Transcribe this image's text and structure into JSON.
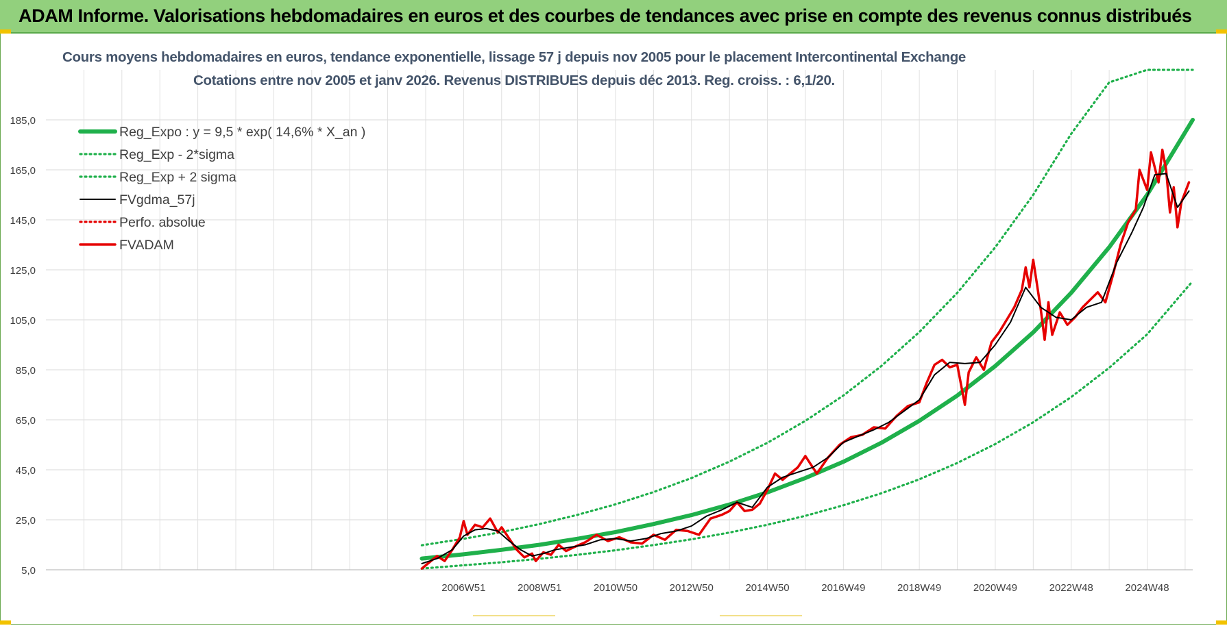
{
  "header": {
    "title": "ADAM Informe. Valorisations hebdomadaires en euros et des courbes de tendances avec prise en compte des revenus connus distribués"
  },
  "colors": {
    "banner": "#92d07d",
    "reg_expo": "#1fb04b",
    "sigma": "#1fb04b",
    "fvgdma": "#000000",
    "fvadam": "#e60000",
    "perfo": "#e60000",
    "title_text": "#44546a"
  },
  "chart_data": {
    "type": "line",
    "title": "Cours moyens hebdomadaires en euros, tendance exponentielle, lissage 57 j depuis nov 2005  pour le placement Intercontinental Exchange",
    "subtitle": "Cotations entre nov 2005 et janv 2026. Revenus DISTRIBUES depuis déc 2013. Reg. croiss. : 6,1/20.",
    "xlabel": "",
    "ylabel": "",
    "ylim": [
      5,
      205
    ],
    "y_ticks": [
      "5,0",
      "25,0",
      "45,0",
      "65,0",
      "85,0",
      "105,0",
      "125,0",
      "145,0",
      "165,0",
      "185,0"
    ],
    "x_tick_labels": [
      "2006W51",
      "2008W51",
      "2010W50",
      "2012W50",
      "2014W50",
      "2016W49",
      "2018W49",
      "2020W49",
      "2022W48",
      "2024W48"
    ],
    "x_tick_years": [
      2007.0,
      2009.0,
      2011.0,
      2013.0,
      2015.0,
      2017.0,
      2019.0,
      2021.0,
      2023.0,
      2025.0
    ],
    "x_range": [
      1996.0,
      2026.2
    ],
    "grid": true,
    "legend_position": "top-left",
    "regression": {
      "a": 9.5,
      "rate": 0.146,
      "start_year": 2005.9,
      "sigma_factor_low": 0.65,
      "sigma_factor_high": 1.55
    },
    "series": [
      {
        "name": "Reg_Expo : y = 9,5 * exp( 14,6% *  X_an )",
        "style": "solid-thick",
        "color": "#1fb04b",
        "x": [
          2005.9,
          2007,
          2008,
          2009,
          2010,
          2011,
          2012,
          2013,
          2014,
          2015,
          2016,
          2017,
          2018,
          2019,
          2020,
          2021,
          2022,
          2023,
          2024,
          2025,
          2026.2
        ],
        "values": [
          9.5,
          11.2,
          13.0,
          15.0,
          17.4,
          20.1,
          23.3,
          26.9,
          31.1,
          36.0,
          41.7,
          48.2,
          55.8,
          64.6,
          74.7,
          86.5,
          100.0,
          115.8,
          134.0,
          155.0,
          185.0
        ]
      },
      {
        "name": "Reg_Exp - 2*sigma",
        "style": "dotted",
        "color": "#1fb04b",
        "x": [
          2005.9,
          2007,
          2008,
          2009,
          2010,
          2011,
          2012,
          2013,
          2014,
          2015,
          2016,
          2017,
          2018,
          2019,
          2020,
          2021,
          2022,
          2023,
          2024,
          2025,
          2026.2
        ],
        "values": [
          5.5,
          6.8,
          8.0,
          9.4,
          11.0,
          12.8,
          14.9,
          17.2,
          19.9,
          23.0,
          26.6,
          30.8,
          35.6,
          41.2,
          47.7,
          55.3,
          64.0,
          74.1,
          85.8,
          99.2,
          120.5
        ]
      },
      {
        "name": "Reg_Exp + 2 sigma",
        "style": "dotted",
        "color": "#1fb04b",
        "x": [
          2005.9,
          2007,
          2008,
          2009,
          2010,
          2011,
          2012,
          2013,
          2014,
          2015,
          2016,
          2017,
          2018,
          2019,
          2020,
          2021,
          2022,
          2023,
          2024,
          2025,
          2026.2
        ],
        "values": [
          14.8,
          17.4,
          20.1,
          23.3,
          27.0,
          31.2,
          36.1,
          41.7,
          48.3,
          55.8,
          64.6,
          74.7,
          86.5,
          100.1,
          115.8,
          134.0,
          155.0,
          179.4,
          200.0,
          205.0,
          205.0
        ]
      },
      {
        "name": "FVgdma_57j",
        "style": "solid",
        "color": "#000000",
        "x": [
          2005.9,
          2006.3,
          2006.7,
          2007.0,
          2007.3,
          2007.6,
          2007.9,
          2008.2,
          2008.5,
          2008.8,
          2009.1,
          2009.4,
          2009.8,
          2010.2,
          2010.6,
          2011.0,
          2011.4,
          2011.8,
          2012.2,
          2012.6,
          2013.0,
          2013.4,
          2013.8,
          2014.2,
          2014.6,
          2015.0,
          2015.4,
          2015.8,
          2016.2,
          2016.6,
          2017.0,
          2017.4,
          2017.8,
          2018.2,
          2018.6,
          2019.0,
          2019.4,
          2019.8,
          2020.2,
          2020.6,
          2021.0,
          2021.4,
          2021.8,
          2022.2,
          2022.6,
          2023.0,
          2023.4,
          2023.8,
          2024.2,
          2024.6,
          2024.9,
          2025.2,
          2025.5,
          2025.8,
          2026.1
        ],
        "values": [
          7.5,
          9.5,
          13.0,
          18.5,
          21.0,
          21.5,
          20.5,
          16.5,
          13.0,
          10.5,
          11.5,
          13.0,
          14.0,
          15.0,
          17.0,
          17.5,
          16.5,
          17.5,
          19.5,
          20.5,
          22.5,
          26.5,
          29.0,
          32.0,
          30.0,
          38.0,
          42.0,
          44.0,
          46.0,
          50.0,
          56.0,
          58.5,
          61.0,
          64.0,
          68.5,
          73.0,
          83.0,
          88.0,
          87.5,
          88.0,
          95.0,
          104.0,
          118.0,
          110.0,
          106.0,
          105.0,
          110.0,
          112.0,
          128.0,
          140.0,
          150.0,
          163.0,
          163.5,
          150.0,
          156.5
        ]
      },
      {
        "name": "Perfo. absolue",
        "style": "dotted",
        "color": "#e60000",
        "x": [],
        "values": []
      },
      {
        "name": "FVADAM",
        "style": "solid-thick",
        "color": "#e60000",
        "x": [
          2005.9,
          2006.1,
          2006.3,
          2006.5,
          2006.7,
          2006.9,
          2007.0,
          2007.1,
          2007.3,
          2007.5,
          2007.7,
          2007.9,
          2008.0,
          2008.2,
          2008.4,
          2008.6,
          2008.8,
          2008.9,
          2009.1,
          2009.3,
          2009.5,
          2009.7,
          2009.9,
          2010.2,
          2010.5,
          2010.8,
          2011.1,
          2011.4,
          2011.7,
          2012.0,
          2012.3,
          2012.6,
          2012.9,
          2013.2,
          2013.5,
          2013.8,
          2014.0,
          2014.2,
          2014.4,
          2014.6,
          2014.8,
          2015.0,
          2015.2,
          2015.4,
          2015.6,
          2015.8,
          2016.0,
          2016.3,
          2016.6,
          2016.9,
          2017.2,
          2017.5,
          2017.8,
          2018.1,
          2018.4,
          2018.7,
          2019.0,
          2019.2,
          2019.4,
          2019.6,
          2019.8,
          2020.0,
          2020.2,
          2020.3,
          2020.5,
          2020.7,
          2020.9,
          2021.1,
          2021.3,
          2021.5,
          2021.7,
          2021.8,
          2021.9,
          2022.0,
          2022.1,
          2022.2,
          2022.3,
          2022.4,
          2022.5,
          2022.7,
          2022.9,
          2023.1,
          2023.3,
          2023.5,
          2023.7,
          2023.9,
          2024.1,
          2024.3,
          2024.5,
          2024.7,
          2024.8,
          2025.0,
          2025.1,
          2025.3,
          2025.4,
          2025.5,
          2025.6,
          2025.7,
          2025.8,
          2025.9,
          2026.0,
          2026.1
        ],
        "values": [
          5.5,
          8.0,
          10.5,
          8.5,
          13.0,
          18.0,
          24.5,
          19.0,
          23.0,
          22.0,
          25.5,
          20.0,
          22.0,
          17.5,
          13.0,
          10.0,
          11.5,
          8.5,
          12.0,
          11.0,
          15.0,
          12.5,
          14.0,
          16.0,
          19.0,
          16.5,
          18.0,
          16.0,
          15.5,
          19.0,
          17.0,
          21.0,
          20.5,
          19.0,
          25.5,
          27.0,
          28.5,
          32.0,
          28.5,
          29.0,
          31.5,
          37.0,
          43.5,
          41.0,
          43.5,
          46.0,
          50.5,
          43.5,
          50.0,
          55.0,
          58.0,
          59.0,
          62.0,
          61.5,
          66.5,
          70.5,
          72.0,
          80.0,
          87.0,
          89.0,
          86.0,
          87.0,
          71.0,
          84.0,
          90.0,
          85.0,
          96.0,
          100.0,
          105.0,
          110.0,
          117.0,
          126.0,
          118.0,
          129.0,
          119.0,
          109.0,
          97.0,
          112.0,
          99.0,
          108.0,
          103.0,
          106.0,
          110.0,
          113.0,
          116.0,
          112.0,
          123.0,
          135.0,
          144.0,
          149.0,
          165.0,
          157.0,
          172.0,
          160.0,
          173.0,
          165.0,
          148.0,
          158.0,
          142.0,
          152.0,
          156.0,
          160.0
        ]
      }
    ]
  },
  "legend": {
    "items": [
      {
        "label": "Reg_Expo : y = 9,5 * exp( 14,6% *  X_an )",
        "style": "solid-thick",
        "color": "#1fb04b"
      },
      {
        "label": "Reg_Exp - 2*sigma",
        "style": "dotted",
        "color": "#1fb04b"
      },
      {
        "label": "Reg_Exp + 2 sigma",
        "style": "dotted",
        "color": "#1fb04b"
      },
      {
        "label": "FVgdma_57j",
        "style": "solid",
        "color": "#000000"
      },
      {
        "label": "Perfo. absolue",
        "style": "dotted",
        "color": "#e60000"
      },
      {
        "label": "FVADAM",
        "style": "solid-thick",
        "color": "#e60000"
      }
    ]
  }
}
